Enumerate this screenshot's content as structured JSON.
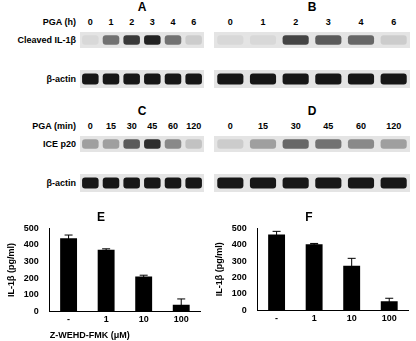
{
  "panels": [
    {
      "letter": "A",
      "treatment": "PGA (h)",
      "lanes": [
        "0",
        "1",
        "2",
        "3",
        "4",
        "6"
      ],
      "rows": [
        {
          "label": "Cleaved IL-1β",
          "intensity": [
            0.05,
            0.5,
            0.75,
            0.85,
            0.5,
            0.1
          ]
        },
        {
          "label": "β-actin",
          "intensity": [
            0.9,
            0.9,
            0.9,
            0.9,
            0.9,
            0.9
          ]
        }
      ]
    },
    {
      "letter": "B",
      "lanes": [
        "0",
        "1",
        "2",
        "3",
        "4",
        "6"
      ],
      "rows": [
        {
          "intensity": [
            0.05,
            0.05,
            0.7,
            0.6,
            0.55,
            0.1
          ]
        },
        {
          "intensity": [
            0.9,
            0.9,
            0.9,
            0.9,
            0.9,
            0.9
          ]
        }
      ]
    },
    {
      "letter": "C",
      "treatment": "PGA (min)",
      "lanes": [
        "0",
        "15",
        "30",
        "45",
        "60",
        "120"
      ],
      "rows": [
        {
          "label": "ICE p20",
          "intensity": [
            0.3,
            0.3,
            0.6,
            0.8,
            0.4,
            0.15
          ]
        },
        {
          "label": "β-actin",
          "intensity": [
            0.9,
            0.9,
            0.9,
            0.9,
            0.9,
            0.9
          ]
        }
      ]
    },
    {
      "letter": "D",
      "lanes": [
        "0",
        "15",
        "30",
        "45",
        "60",
        "120"
      ],
      "rows": [
        {
          "intensity": [
            0.1,
            0.3,
            0.55,
            0.5,
            0.4,
            0.3
          ]
        },
        {
          "intensity": [
            0.9,
            0.9,
            0.9,
            0.9,
            0.9,
            0.9
          ]
        }
      ]
    }
  ],
  "chart_data": [
    {
      "type": "bar",
      "title": "E",
      "categories": [
        "-",
        "1",
        "10",
        "100"
      ],
      "values": [
        440,
        372,
        210,
        40
      ],
      "errors": [
        20,
        5,
        8,
        35
      ],
      "color": "#000000",
      "ylim": [
        0,
        500
      ],
      "yticks": [
        0,
        100,
        200,
        300,
        400,
        500
      ],
      "ylabel": "IL-1β (pg/ml)",
      "xlabel": "Z-WEHD-FMK (μM)",
      "grid": false
    },
    {
      "type": "bar",
      "title": "F",
      "categories": [
        "-",
        "1",
        "10",
        "100"
      ],
      "values": [
        462,
        403,
        272,
        55
      ],
      "errors": [
        20,
        5,
        45,
        18
      ],
      "color": "#000000",
      "ylim": [
        0,
        500
      ],
      "yticks": [
        0,
        100,
        200,
        300,
        400,
        500
      ],
      "ylabel": "IL-1β (pg/ml)",
      "grid": false
    }
  ]
}
